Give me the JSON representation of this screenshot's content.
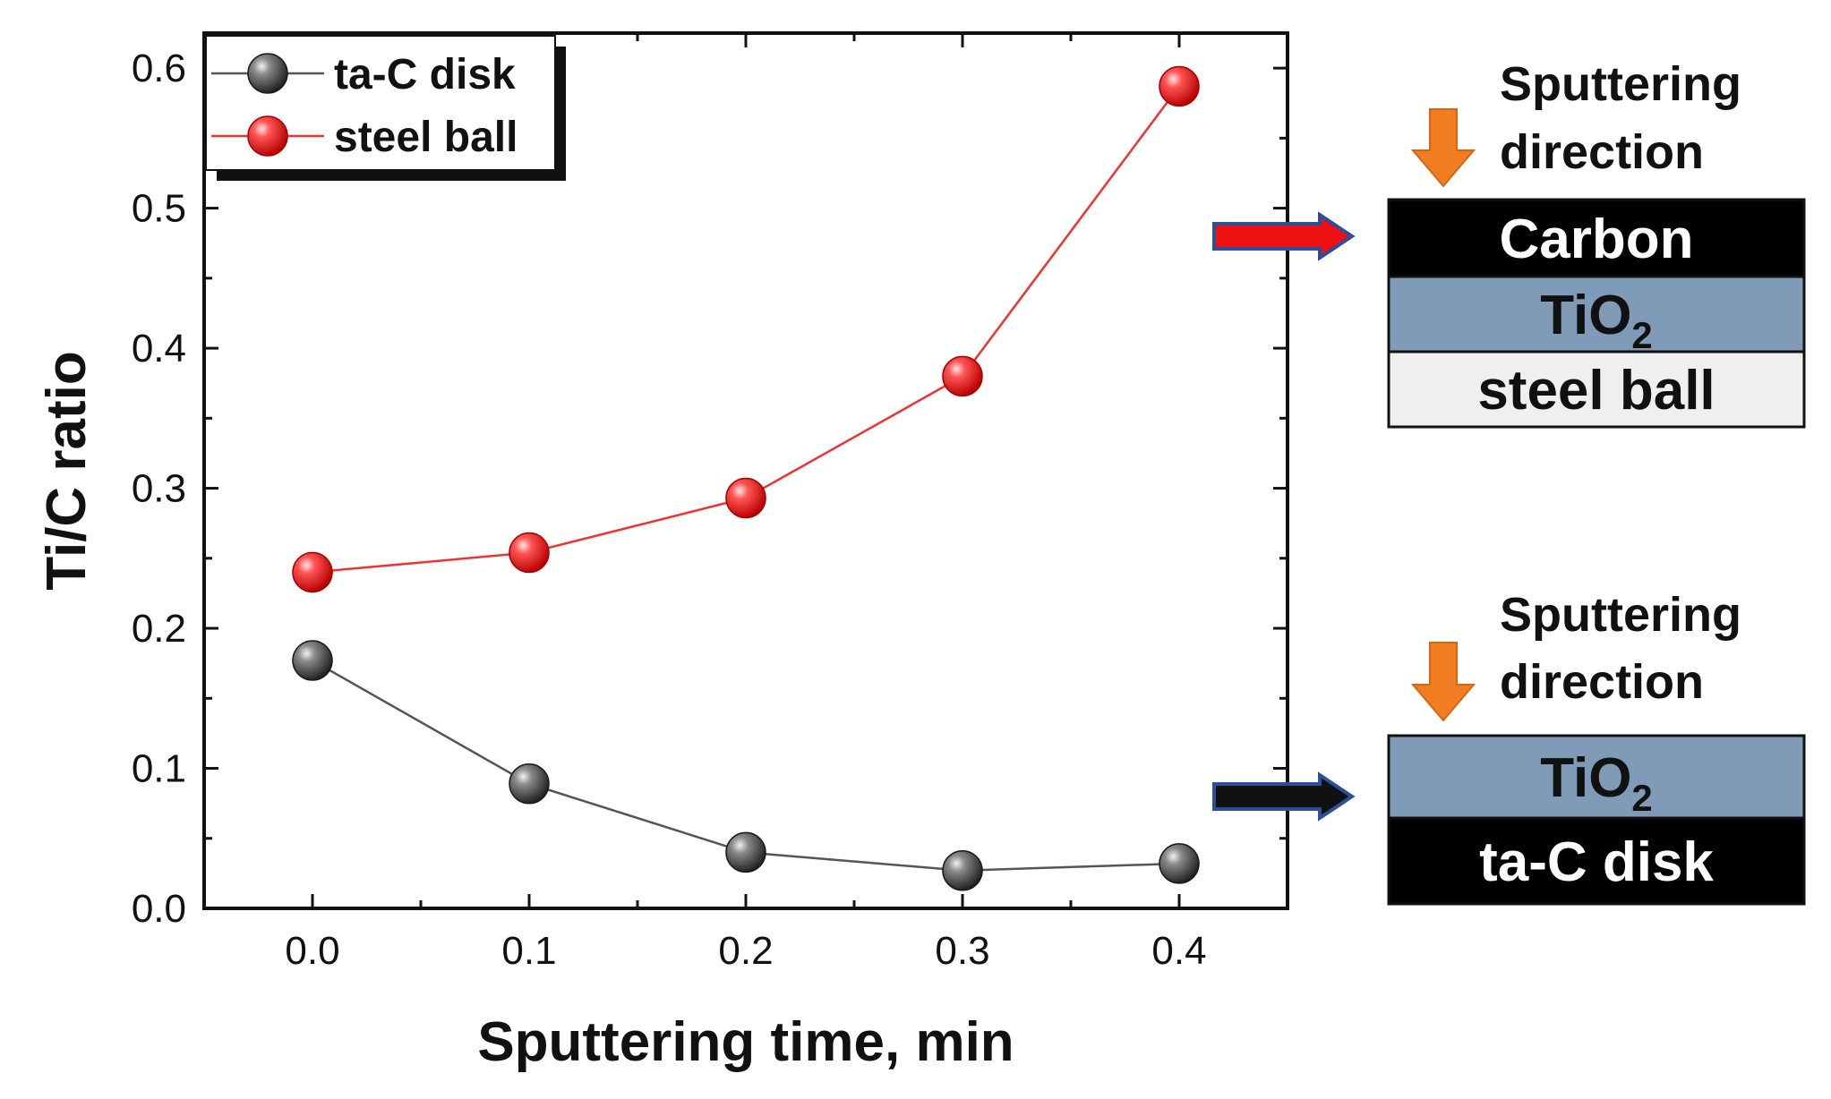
{
  "chart_data": {
    "type": "line",
    "xlabel": "Sputtering time, min",
    "ylabel": "Ti/C ratio",
    "xlim": [
      -0.05,
      0.45
    ],
    "ylim": [
      0.0,
      0.625
    ],
    "x_ticks": [
      "0.0",
      "0.1",
      "0.2",
      "0.3",
      "0.4"
    ],
    "y_ticks": [
      "0.0",
      "0.1",
      "0.2",
      "0.3",
      "0.4",
      "0.5",
      "0.6"
    ],
    "x": [
      0.0,
      0.1,
      0.2,
      0.3,
      0.4
    ],
    "series": [
      {
        "name": "ta-C disk",
        "values": [
          0.177,
          0.089,
          0.04,
          0.027,
          0.032
        ],
        "color": "#3a3a3a",
        "line_color": "#555555"
      },
      {
        "name": "steel ball",
        "values": [
          0.24,
          0.254,
          0.293,
          0.38,
          0.587
        ],
        "color": "#ff2a2a",
        "line_color": "#ee3333"
      }
    ],
    "grid": false,
    "legend_position": "top-left"
  },
  "schematics": {
    "top": {
      "note_line1": "Sputtering",
      "note_line2": "direction",
      "layers": [
        {
          "label": "Carbon",
          "fill": "#000000",
          "text_color": "#ffffff"
        },
        {
          "label": "TiO",
          "sub": "2",
          "fill": "#7f9bb7",
          "text_color": "#111111"
        },
        {
          "label": "steel ball",
          "fill": "#efefef",
          "text_color": "#111111"
        }
      ],
      "pointer_color": "#ee1111"
    },
    "bottom": {
      "note_line1": "Sputtering",
      "note_line2": "direction",
      "layers": [
        {
          "label": "TiO",
          "sub": "2",
          "fill": "#7f9bb7",
          "text_color": "#111111"
        },
        {
          "label": "ta-C disk",
          "fill": "#000000",
          "text_color": "#ffffff"
        }
      ],
      "pointer_color": "#111111"
    },
    "arrow_down_color": "#f07d22",
    "pointer_outline_color": "#2d4f9a"
  }
}
